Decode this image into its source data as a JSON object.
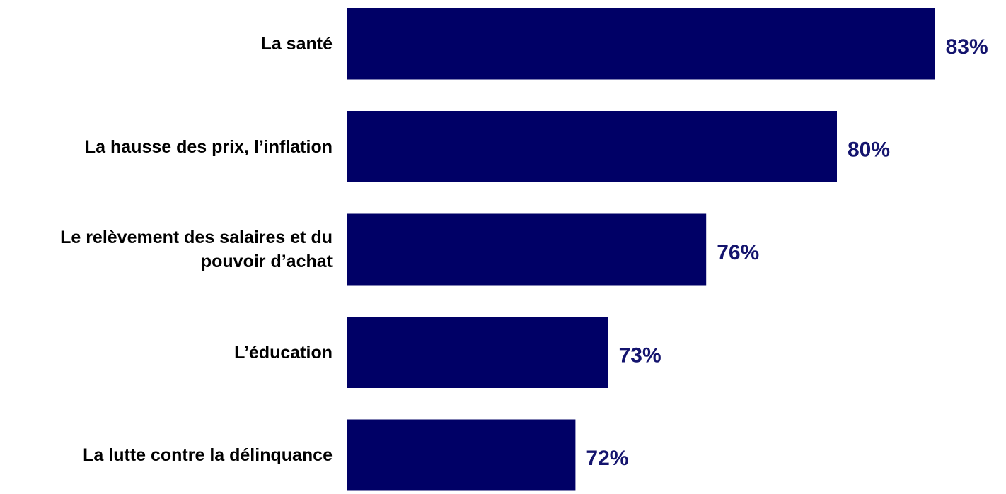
{
  "chart_data": {
    "type": "hbar",
    "categories": [
      "La santé",
      "La hausse des prix, l’inflation",
      "Le relèvement des salaires et du pouvoir d’achat",
      "L’éducation",
      "La lutte contre la délinquance"
    ],
    "values": [
      83,
      80,
      76,
      73,
      72
    ],
    "value_labels": [
      "83%",
      "80%",
      "76%",
      "73%",
      "72%"
    ],
    "color": "#000066",
    "label_color": "#14146e",
    "xlim": [
      65,
      85
    ]
  }
}
